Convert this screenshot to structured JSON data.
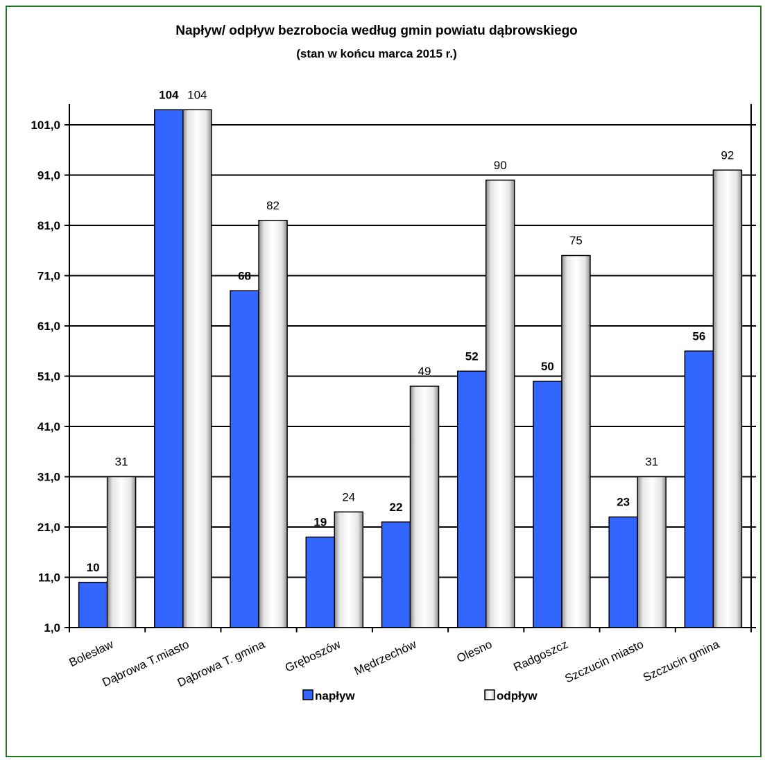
{
  "chart_data": {
    "type": "bar",
    "title": "Napływ/ odpływ bezrobocia według gmin powiatu dąbrowskiego",
    "subtitle": "(stan w końcu marca 2015 r.)",
    "categories": [
      "Bolesław",
      "Dąbrowa T.miasto",
      "Dąbrowa T. gmina",
      "Gręboszów",
      "Mędrzechów",
      "Olesno",
      "Radgoszcz",
      "Szczucin miasto",
      "Szczucin gmina"
    ],
    "series": [
      {
        "name": "napływ",
        "values": [
          10,
          104,
          68,
          19,
          22,
          52,
          50,
          23,
          56
        ],
        "color": "#3366ff",
        "label_bold": true
      },
      {
        "name": "odpływ",
        "values": [
          31,
          104,
          82,
          24,
          49,
          90,
          75,
          31,
          92
        ],
        "color": "#d9d9d9",
        "label_bold": false
      }
    ],
    "yticks": [
      "1,0",
      "11,0",
      "21,0",
      "31,0",
      "41,0",
      "51,0",
      "61,0",
      "71,0",
      "81,0",
      "91,0",
      "101,0"
    ],
    "ylim": [
      1,
      101
    ],
    "grid": true,
    "legend": "bottom"
  },
  "colors": {
    "frame_border": "#1f7a1f",
    "bar_outline": "#000000"
  }
}
